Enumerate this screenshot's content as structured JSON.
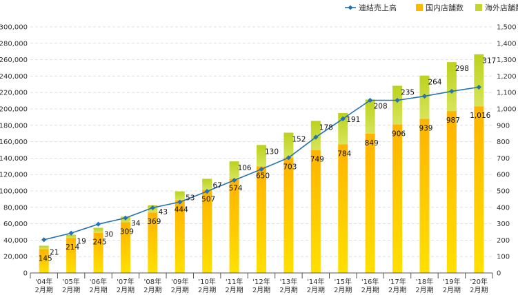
{
  "chart_data": {
    "type": "bar",
    "stacked": true,
    "categories": [
      [
        "'04年",
        "2月期"
      ],
      [
        "'05年",
        "2月期"
      ],
      [
        "'06年",
        "2月期"
      ],
      [
        "'07年",
        "2月期"
      ],
      [
        "'08年",
        "2月期"
      ],
      [
        "'09年",
        "2月期"
      ],
      [
        "'10年",
        "2月期"
      ],
      [
        "'11年",
        "2月期"
      ],
      [
        "'12年",
        "2月期"
      ],
      [
        "'13年",
        "2月期"
      ],
      [
        "'14年",
        "2月期"
      ],
      [
        "'15年",
        "2月期"
      ],
      [
        "'16年",
        "2月期"
      ],
      [
        "'17年",
        "2月期"
      ],
      [
        "'18年",
        "2月期"
      ],
      [
        "'19年",
        "2月期"
      ],
      [
        "'20年",
        "2月期"
      ]
    ],
    "series": [
      {
        "name": "国内店舗数",
        "type": "bar",
        "axis": "right",
        "color": "#FFB800",
        "values": [
          145,
          214,
          245,
          309,
          369,
          444,
          507,
          574,
          650,
          703,
          749,
          784,
          849,
          906,
          939,
          987,
          1016
        ],
        "labels": [
          "145",
          "214",
          "245",
          "309",
          "369",
          "444",
          "507",
          "574",
          "650",
          "703",
          "749",
          "784",
          "849",
          "906",
          "939",
          "987",
          "1,016"
        ]
      },
      {
        "name": "海外店舗数",
        "type": "bar",
        "axis": "right",
        "color": "#C3D62B",
        "values": [
          21,
          19,
          30,
          34,
          43,
          53,
          67,
          106,
          130,
          152,
          178,
          191,
          208,
          235,
          264,
          298,
          317
        ],
        "labels": [
          "21",
          "19",
          "30",
          "34",
          "43",
          "53",
          "67",
          "106",
          "130",
          "152",
          "178",
          "191",
          "208",
          "235",
          "264",
          "298",
          "317"
        ]
      },
      {
        "name": "連結売上高",
        "type": "line",
        "axis": "left",
        "color": "#2471B4",
        "values": [
          40500,
          48500,
          59500,
          67000,
          79500,
          86500,
          99500,
          113000,
          126500,
          140500,
          165500,
          188000,
          210500,
          210500,
          215500,
          221500,
          226500
        ]
      }
    ],
    "yaxis_left": {
      "min": 0,
      "max": 300000,
      "step": 20000,
      "tick_labels": [
        "0",
        "20,000",
        "40,000",
        "60,000",
        "80,000",
        "100,000",
        "120,000",
        "140,000",
        "160,000",
        "180,000",
        "200,000",
        "220,000",
        "240,000",
        "260,000",
        "280,000",
        "300,000"
      ]
    },
    "yaxis_right": {
      "min": 0,
      "max": 1500,
      "step": 100,
      "tick_labels": [
        "0",
        "100",
        "200",
        "300",
        "400",
        "500",
        "600",
        "700",
        "800",
        "900",
        "1,000",
        "1,100",
        "1,200",
        "1,300",
        "1,400",
        "1,500"
      ]
    },
    "grid": true,
    "legend_position": "top-right",
    "legend": [
      {
        "name": "連結売上高",
        "marker": "line-diamond",
        "color": "#2471B4"
      },
      {
        "name": "国内店舗数",
        "marker": "square",
        "color": "#FFB800"
      },
      {
        "name": "海外店舗数",
        "marker": "square",
        "color": "#C3D62B"
      }
    ]
  }
}
